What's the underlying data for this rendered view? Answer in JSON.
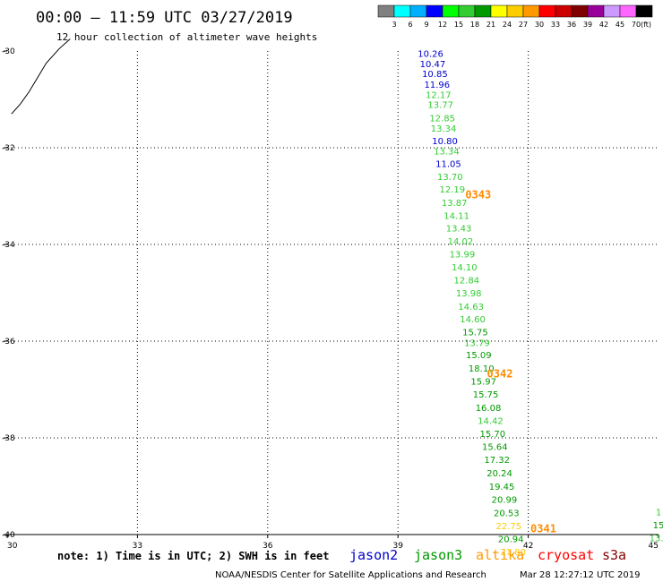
{
  "header": {
    "title": "00:00 – 11:59 UTC 03/27/2019",
    "subtitle": "12 hour collection of altimeter wave heights"
  },
  "colorbar": {
    "labels": [
      "3",
      "6",
      "9",
      "12",
      "15",
      "18",
      "21",
      "24",
      "27",
      "30",
      "33",
      "36",
      "39",
      "42",
      "45",
      "70"
    ],
    "unit": "(ft)",
    "colors": [
      "#808080",
      "#00ffff",
      "#00b0ff",
      "#0000ff",
      "#00ff00",
      "#33cc33",
      "#009900",
      "#ffff00",
      "#ffcc00",
      "#ff9900",
      "#ff0000",
      "#cc0000",
      "#800000",
      "#990099",
      "#cc99ff",
      "#ff66ff",
      "#000000"
    ]
  },
  "footer": {
    "note": "note: 1) Time is in UTC; 2) SWH is in feet",
    "satellites": [
      {
        "name": "jason2",
        "color": "#0000cc"
      },
      {
        "name": "jason3",
        "color": "#009900"
      },
      {
        "name": "altika",
        "color": "#ff9900"
      },
      {
        "name": "cryosat",
        "color": "#ff0000"
      },
      {
        "name": "s3a",
        "color": "#880000"
      }
    ],
    "credit": "NOAA/NESDIS Center for Satellite Applications and Research",
    "timestamp": "Mar 28 12:27:12 UTC 2019"
  },
  "chart_data": {
    "type": "scatter",
    "xlim": [
      30,
      45
    ],
    "ylim": [
      -40,
      -30
    ],
    "x_ticks": [
      "30",
      "33",
      "36",
      "39",
      "42",
      "45"
    ],
    "y_ticks": [
      "-30",
      "-32",
      "-34",
      "-36",
      "-38",
      "-40"
    ],
    "grid": true,
    "pass_labels": [
      {
        "text": "0343",
        "x": 40.55,
        "y": -33.05
      },
      {
        "text": "0342",
        "x": 41.05,
        "y": -36.75
      },
      {
        "text": "0341",
        "x": 42.05,
        "y": -39.95
      }
    ],
    "track": [
      {
        "v": "10.26",
        "x": 39.75,
        "y": -30.12,
        "c": "#0000cc"
      },
      {
        "v": "10.47",
        "x": 39.8,
        "y": -30.33,
        "c": "#0000cc"
      },
      {
        "v": "10.85",
        "x": 39.85,
        "y": -30.54,
        "c": "#0000cc"
      },
      {
        "v": "11.96",
        "x": 39.9,
        "y": -30.76,
        "c": "#0000cc"
      },
      {
        "v": "12.17",
        "x": 39.93,
        "y": -30.97,
        "c": "#33cc33"
      },
      {
        "v": "13.77",
        "x": 39.98,
        "y": -31.18,
        "c": "#33cc33"
      },
      {
        "v": "12.85",
        "x": 40.02,
        "y": -31.45,
        "c": "#33cc33"
      },
      {
        "v": "13.34",
        "x": 40.05,
        "y": -31.67,
        "c": "#33cc33"
      },
      {
        "v": "10.80",
        "x": 40.08,
        "y": -31.93,
        "c": "#0000cc"
      },
      {
        "v": "13.34",
        "x": 40.12,
        "y": -32.14,
        "c": "#33cc33"
      },
      {
        "v": "11.05",
        "x": 40.16,
        "y": -32.4,
        "c": "#0000cc"
      },
      {
        "v": "13.70",
        "x": 40.2,
        "y": -32.67,
        "c": "#33cc33"
      },
      {
        "v": "12.19",
        "x": 40.25,
        "y": -32.93,
        "c": "#33cc33"
      },
      {
        "v": "13.87",
        "x": 40.3,
        "y": -33.2,
        "c": "#33cc33"
      },
      {
        "v": "14.11",
        "x": 40.35,
        "y": -33.47,
        "c": "#33cc33"
      },
      {
        "v": "13.43",
        "x": 40.4,
        "y": -33.73,
        "c": "#33cc33"
      },
      {
        "v": "14.02",
        "x": 40.44,
        "y": -34.0,
        "c": "#33cc33"
      },
      {
        "v": "13.99",
        "x": 40.48,
        "y": -34.27,
        "c": "#33cc33"
      },
      {
        "v": "14.10",
        "x": 40.53,
        "y": -34.54,
        "c": "#33cc33"
      },
      {
        "v": "12.84",
        "x": 40.58,
        "y": -34.81,
        "c": "#33cc33"
      },
      {
        "v": "13.98",
        "x": 40.63,
        "y": -35.07,
        "c": "#33cc33"
      },
      {
        "v": "14.63",
        "x": 40.68,
        "y": -35.35,
        "c": "#33cc33"
      },
      {
        "v": "14.60",
        "x": 40.72,
        "y": -35.61,
        "c": "#33cc33"
      },
      {
        "v": "15.75",
        "x": 40.78,
        "y": -35.88,
        "c": "#009900"
      },
      {
        "v": "13.79",
        "x": 40.82,
        "y": -36.1,
        "c": "#33cc33"
      },
      {
        "v": "15.09",
        "x": 40.86,
        "y": -36.35,
        "c": "#009900"
      },
      {
        "v": "18.10",
        "x": 40.92,
        "y": -36.63,
        "c": "#009900"
      },
      {
        "v": "15.97",
        "x": 40.97,
        "y": -36.9,
        "c": "#009900"
      },
      {
        "v": "15.75",
        "x": 41.02,
        "y": -37.17,
        "c": "#009900"
      },
      {
        "v": "16.08",
        "x": 41.08,
        "y": -37.44,
        "c": "#009900"
      },
      {
        "v": "14.42",
        "x": 41.13,
        "y": -37.71,
        "c": "#33cc33"
      },
      {
        "v": "15.70",
        "x": 41.18,
        "y": -37.98,
        "c": "#009900"
      },
      {
        "v": "15.64",
        "x": 41.23,
        "y": -38.25,
        "c": "#009900"
      },
      {
        "v": "17.32",
        "x": 41.28,
        "y": -38.52,
        "c": "#009900"
      },
      {
        "v": "20.24",
        "x": 41.34,
        "y": -38.8,
        "c": "#009900"
      },
      {
        "v": "19.45",
        "x": 41.39,
        "y": -39.07,
        "c": "#009900"
      },
      {
        "v": "20.99",
        "x": 41.45,
        "y": -39.34,
        "c": "#009900"
      },
      {
        "v": "20.53",
        "x": 41.5,
        "y": -39.62,
        "c": "#009900"
      },
      {
        "v": "22.75",
        "x": 41.55,
        "y": -39.89,
        "c": "#ffcc00"
      },
      {
        "v": "20.94",
        "x": 41.6,
        "y": -40.16,
        "c": "#009900"
      },
      {
        "v": "21.80",
        "x": 41.65,
        "y": -40.43,
        "c": "#ffcc00"
      }
    ],
    "edge_track": [
      {
        "v": "1",
        "x": 45.0,
        "y": -39.6,
        "c": "#33cc33"
      },
      {
        "v": "15",
        "x": 45.0,
        "y": -39.87,
        "c": "#009900"
      },
      {
        "v": "13.",
        "x": 44.95,
        "y": -40.14,
        "c": "#33cc33"
      }
    ],
    "coastline": [
      [
        30.1,
        -31.3
      ],
      [
        30.3,
        -31.1
      ],
      [
        30.5,
        -30.85
      ],
      [
        30.7,
        -30.55
      ],
      [
        30.9,
        -30.25
      ],
      [
        31.2,
        -29.95
      ],
      [
        31.45,
        -29.75
      ]
    ]
  }
}
